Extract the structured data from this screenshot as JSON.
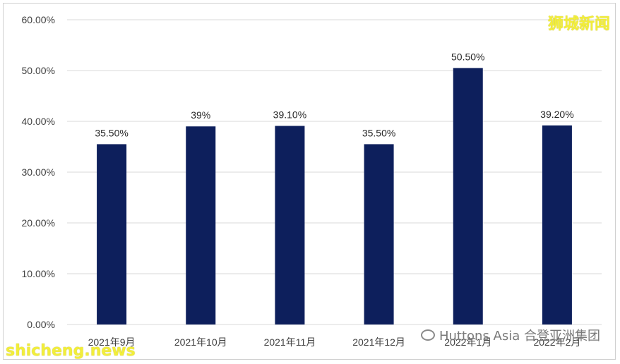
{
  "chart_data": {
    "type": "bar",
    "categories": [
      "2021年9月",
      "2021年10月",
      "2021年11月",
      "2021年12月",
      "2022年1月",
      "2022年2月"
    ],
    "values": [
      35.5,
      39.0,
      39.1,
      35.5,
      50.5,
      39.2
    ],
    "data_labels": [
      "35.50%",
      "39%",
      "39.10%",
      "35.50%",
      "50.50%",
      "39.20%"
    ],
    "y_ticks": [
      "0.00%",
      "10.00%",
      "20.00%",
      "30.00%",
      "40.00%",
      "50.00%",
      "60.00%"
    ],
    "ylim": [
      0,
      60
    ],
    "grid": true,
    "bar_color": "#0d1f5c"
  },
  "watermarks": {
    "top": "狮城新闻",
    "bottom": "shicheng.news",
    "source": "Huttons Asia 合登亚洲集团"
  }
}
